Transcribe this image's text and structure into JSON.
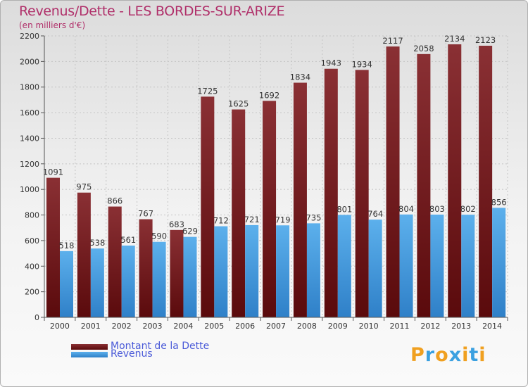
{
  "chart_data": {
    "type": "bar",
    "title": "Revenus/Dette - LES BORDES-SUR-ARIZE",
    "subtitle": "(en milliers d'€)",
    "xlabel": "",
    "ylabel": "",
    "ylim": [
      0,
      2200
    ],
    "yticks": [
      0,
      200,
      400,
      600,
      800,
      1000,
      1200,
      1400,
      1600,
      1800,
      2000,
      2200
    ],
    "grid": true,
    "categories": [
      "2000",
      "2001",
      "2002",
      "2003",
      "2004",
      "2005",
      "2006",
      "2007",
      "2008",
      "2009",
      "2010",
      "2011",
      "2012",
      "2013",
      "2014"
    ],
    "series": [
      {
        "name": "Montant de la Dette",
        "color": "#7a1f24",
        "values": [
          1091,
          975,
          866,
          767,
          683,
          1725,
          1625,
          1692,
          1834,
          1943,
          1934,
          2117,
          2058,
          2134,
          2123
        ]
      },
      {
        "name": "Revenus",
        "color": "#4a9fe0",
        "values": [
          518,
          538,
          561,
          590,
          629,
          712,
          721,
          719,
          735,
          801,
          764,
          804,
          803,
          802,
          856
        ]
      }
    ],
    "legend_position": "bottom-left"
  },
  "logo": {
    "letters": [
      "P",
      "r",
      "o",
      "x",
      "i",
      "t",
      "i"
    ],
    "colors": [
      "#f0a020",
      "#3aa0e0",
      "#f0a020",
      "#3aa0e0",
      "#f0a020",
      "#3aa0e0",
      "#f0a020"
    ]
  }
}
